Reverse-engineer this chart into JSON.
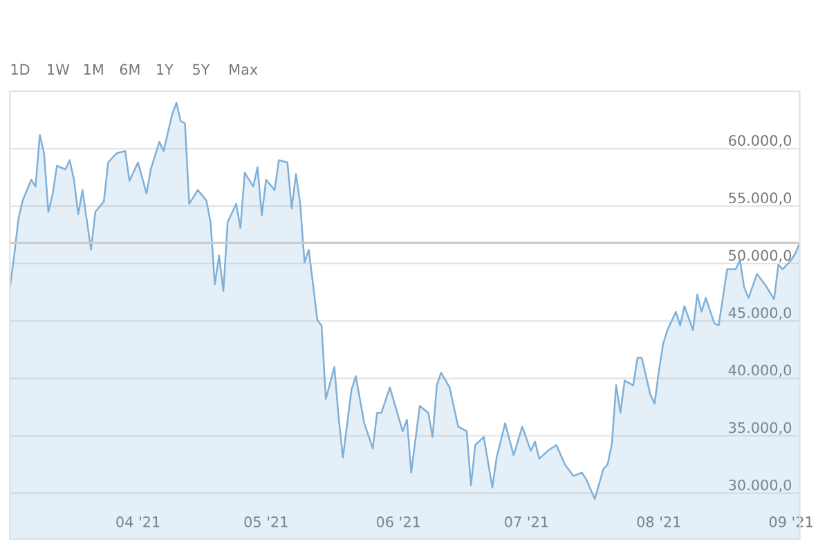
{
  "chart_data": {
    "type": "area",
    "annotations": [
      "1D",
      "1W",
      "1M",
      "6M",
      "1Y",
      "5Y",
      "Max"
    ],
    "x": [
      "2021-03-02",
      "2021-03-03",
      "2021-03-04",
      "2021-03-05",
      "2021-03-07",
      "2021-03-08",
      "2021-03-09",
      "2021-03-10",
      "2021-03-11",
      "2021-03-12",
      "2021-03-13",
      "2021-03-15",
      "2021-03-16",
      "2021-03-17",
      "2021-03-18",
      "2021-03-19",
      "2021-03-21",
      "2021-03-22",
      "2021-03-24",
      "2021-03-25",
      "2021-03-27",
      "2021-03-29",
      "2021-03-30",
      "2021-04-01",
      "2021-04-03",
      "2021-04-04",
      "2021-04-06",
      "2021-04-07",
      "2021-04-09",
      "2021-04-10",
      "2021-04-11",
      "2021-04-12",
      "2021-04-13",
      "2021-04-15",
      "2021-04-17",
      "2021-04-18",
      "2021-04-19",
      "2021-04-20",
      "2021-04-21",
      "2021-04-22",
      "2021-04-24",
      "2021-04-25",
      "2021-04-26",
      "2021-04-28",
      "2021-04-29",
      "2021-04-30",
      "2021-05-01",
      "2021-05-03",
      "2021-05-04",
      "2021-05-06",
      "2021-05-07",
      "2021-05-08",
      "2021-05-09",
      "2021-05-10",
      "2021-05-11",
      "2021-05-12",
      "2021-05-13",
      "2021-05-14",
      "2021-05-15",
      "2021-05-17",
      "2021-05-18",
      "2021-05-19",
      "2021-05-21",
      "2021-05-22",
      "2021-05-24",
      "2021-05-26",
      "2021-05-27",
      "2021-05-28",
      "2021-05-30",
      "2021-06-02",
      "2021-06-03",
      "2021-06-04",
      "2021-06-06",
      "2021-06-08",
      "2021-06-09",
      "2021-06-10",
      "2021-06-11",
      "2021-06-13",
      "2021-06-15",
      "2021-06-17",
      "2021-06-18",
      "2021-06-19",
      "2021-06-21",
      "2021-06-23",
      "2021-06-24",
      "2021-06-26",
      "2021-06-28",
      "2021-06-30",
      "2021-07-02",
      "2021-07-03",
      "2021-07-04",
      "2021-07-06",
      "2021-07-08",
      "2021-07-10",
      "2021-07-12",
      "2021-07-14",
      "2021-07-15",
      "2021-07-17",
      "2021-07-19",
      "2021-07-20",
      "2021-07-21",
      "2021-07-22",
      "2021-07-23",
      "2021-07-24",
      "2021-07-26",
      "2021-07-27",
      "2021-07-28",
      "2021-07-30",
      "2021-07-31",
      "2021-08-01",
      "2021-08-02",
      "2021-08-03",
      "2021-08-05",
      "2021-08-06",
      "2021-08-07",
      "2021-08-09",
      "2021-08-10",
      "2021-08-11",
      "2021-08-12",
      "2021-08-14",
      "2021-08-15",
      "2021-08-16",
      "2021-08-17",
      "2021-08-19",
      "2021-08-20",
      "2021-08-21",
      "2021-08-22",
      "2021-08-24",
      "2021-08-26",
      "2021-08-27",
      "2021-08-28",
      "2021-08-29",
      "2021-08-30",
      "2021-09-01",
      "2021-09-02",
      "2021-09-03"
    ],
    "series": [
      {
        "color": "#7fb0d8",
        "values": [
          47900,
          50700,
          53900,
          55500,
          57300,
          56700,
          61200,
          59600,
          54500,
          56000,
          58500,
          58200,
          59000,
          57300,
          54300,
          56400,
          51200,
          54500,
          55400,
          58800,
          59600,
          59800,
          57200,
          58800,
          56100,
          58200,
          60600,
          59800,
          63000,
          64000,
          62400,
          62200,
          55200,
          56400,
          55500,
          53600,
          48200,
          50700,
          47600,
          53600,
          55200,
          53100,
          57900,
          56700,
          58400,
          54200,
          57300,
          56400,
          59000,
          58800,
          54800,
          57800,
          55200,
          50100,
          51200,
          48200,
          45100,
          44600,
          38200,
          41000,
          36600,
          33100,
          39000,
          40200,
          36100,
          33900,
          37000,
          37000,
          39200,
          35400,
          36400,
          31800,
          37600,
          37000,
          34900,
          39400,
          40500,
          39200,
          35800,
          35400,
          30700,
          34200,
          34900,
          30500,
          33100,
          36100,
          33300,
          35800,
          33700,
          34500,
          33000,
          33700,
          34200,
          32500,
          31500,
          31800,
          31200,
          29500,
          32100,
          32500,
          34300,
          39400,
          37000,
          39800,
          39400,
          41800,
          41800,
          38600,
          37800,
          40600,
          43000,
          44200,
          45800,
          44600,
          46300,
          44200,
          47300,
          45800,
          47000,
          44800,
          44600,
          47000,
          49500,
          49500,
          50300,
          47900,
          47000,
          49100,
          48100,
          47500,
          46900,
          49900,
          49500,
          50300,
          50900,
          51800
        ]
      }
    ],
    "xlim": [
      "2021-03-02",
      "2021-09-03"
    ],
    "xticks": [
      {
        "value": "2021-04-01",
        "label": "04 '21"
      },
      {
        "value": "2021-05-01",
        "label": "05 '21"
      },
      {
        "value": "2021-06-01",
        "label": "06 '21"
      },
      {
        "value": "2021-07-01",
        "label": "07 '21"
      },
      {
        "value": "2021-08-01",
        "label": "08 '21"
      },
      {
        "value": "2021-09-01",
        "label": "09 '21"
      }
    ],
    "ylim": [
      26000,
      65000
    ],
    "yticks": [
      {
        "value": 30000,
        "label": "30.000,0"
      },
      {
        "value": 35000,
        "label": "35.000,0"
      },
      {
        "value": 40000,
        "label": "40.000,0"
      },
      {
        "value": 45000,
        "label": "45.000,0"
      },
      {
        "value": 50000,
        "label": "50.000,0"
      },
      {
        "value": 55000,
        "label": "55.000,0"
      },
      {
        "value": 60000,
        "label": "60.000,0"
      }
    ],
    "ref_lines": [
      {
        "axis": "y",
        "value": 51800,
        "label": null,
        "color": "#cccccc"
      }
    ],
    "grid": "y",
    "legend": false
  }
}
